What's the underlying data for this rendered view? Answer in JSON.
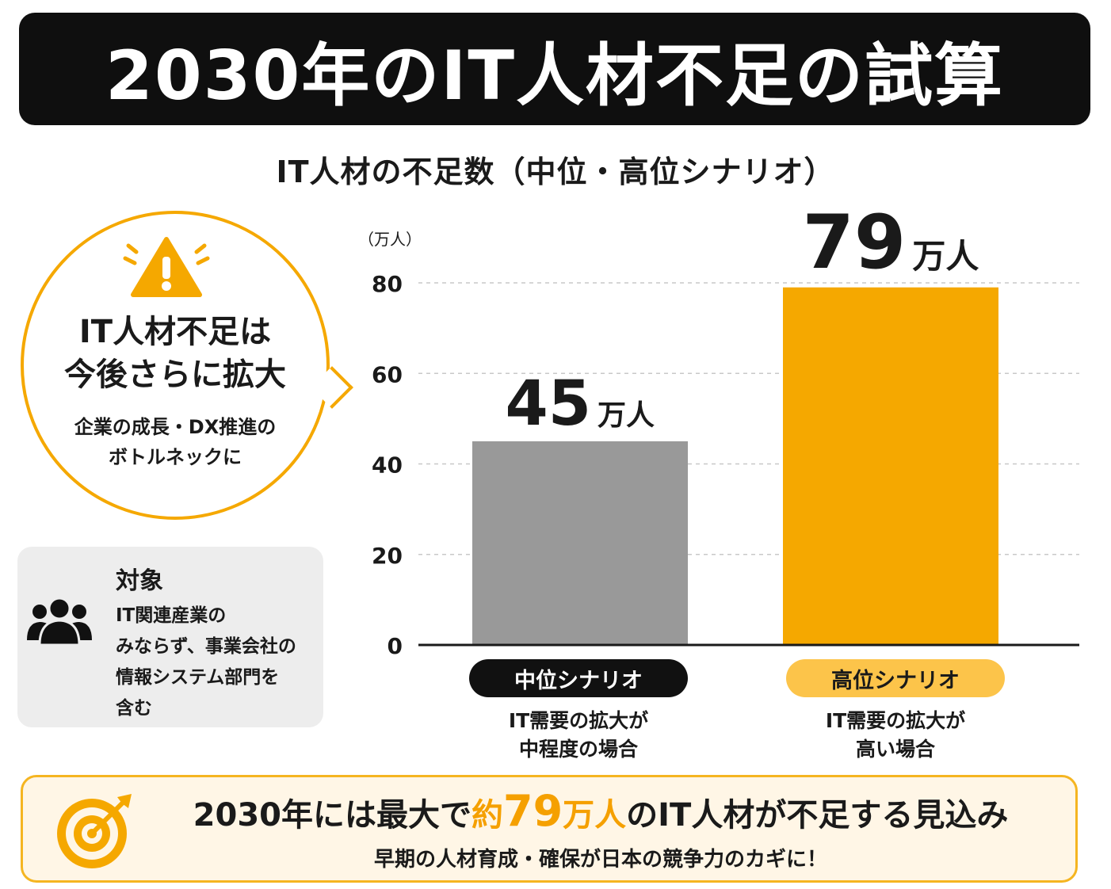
{
  "header": {
    "title": "2030年のIT人材不足の試算"
  },
  "callout": {
    "heading_line1": "IT人材不足は",
    "heading_line2": "今後さらに拡大",
    "sub_line1": "企業の成長・DX推進の",
    "sub_line2": "ボトルネックに",
    "icon": "warning-icon",
    "accent_color": "#f5a800"
  },
  "target": {
    "heading": "対象",
    "body": "IT関連産業の\nみならず、事業会社の\n情報システム部門を\n含む",
    "icon": "people-group-icon"
  },
  "chart_data": {
    "type": "bar",
    "title": "IT人材の不足数（中位・高位シナリオ）",
    "unit_label": "（万人）",
    "categories": [
      "中位シナリオ",
      "高位シナリオ"
    ],
    "values": [
      45,
      79
    ],
    "value_labels": [
      {
        "number": "45",
        "unit": "万人"
      },
      {
        "number": "79",
        "unit": "万人"
      }
    ],
    "descriptions": [
      "IT需要の拡大が\n中程度の場合",
      "IT需要の拡大が\n高い場合"
    ],
    "colors": [
      "#999999",
      "#f5a800"
    ],
    "ylim": [
      0,
      80
    ],
    "yticks": [
      0,
      20,
      40,
      60,
      80
    ],
    "grid": true,
    "legend": "none"
  },
  "footer": {
    "main_pre": "2030年には最大で",
    "main_accent_pre": "約",
    "main_accent_num": "79",
    "main_accent_unit": "万人",
    "main_post": "のIT人材が不足する見込み",
    "sub": "早期の人材育成・確保が日本の競争力のカギに！",
    "icon": "target-icon",
    "accent_color": "#f5a000"
  }
}
